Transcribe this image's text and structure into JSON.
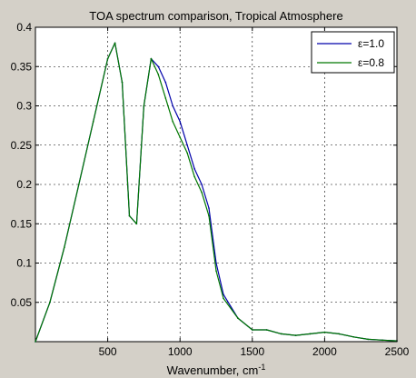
{
  "chart_data": {
    "type": "line",
    "title": "TOA spectrum comparison, Tropical Atmosphere",
    "xlabel": "Wavenumber, cm",
    "xlabel_superscript": "-1",
    "ylabel": "",
    "xlim": [
      0,
      2500
    ],
    "ylim": [
      0,
      0.4
    ],
    "x_ticks": [
      500,
      1000,
      1500,
      2000,
      2500
    ],
    "y_ticks": [
      0.05,
      0.1,
      0.15,
      0.2,
      0.25,
      0.3,
      0.35,
      0.4
    ],
    "y_tick_labels": [
      "0.05",
      "0.1",
      "0.15",
      "0.2",
      "0.25",
      "0.3",
      "0.35",
      "0.4"
    ],
    "grid": true,
    "legend_position": "top-right",
    "series": [
      {
        "name": "ε=1.0",
        "color": "#0000aa",
        "x": [
          0,
          100,
          200,
          300,
          400,
          500,
          550,
          600,
          650,
          700,
          750,
          800,
          850,
          900,
          950,
          1000,
          1050,
          1100,
          1150,
          1200,
          1250,
          1300,
          1400,
          1500,
          1600,
          1700,
          1800,
          1900,
          2000,
          2100,
          2200,
          2300,
          2400,
          2500
        ],
        "y": [
          0.0,
          0.05,
          0.12,
          0.2,
          0.28,
          0.36,
          0.38,
          0.33,
          0.16,
          0.15,
          0.3,
          0.36,
          0.35,
          0.33,
          0.3,
          0.28,
          0.25,
          0.22,
          0.2,
          0.17,
          0.1,
          0.06,
          0.03,
          0.015,
          0.015,
          0.01,
          0.008,
          0.01,
          0.012,
          0.01,
          0.006,
          0.003,
          0.002,
          0.001
        ]
      },
      {
        "name": "ε=0.8",
        "color": "#007700",
        "x": [
          0,
          100,
          200,
          300,
          400,
          500,
          550,
          600,
          650,
          700,
          750,
          800,
          850,
          900,
          950,
          1000,
          1050,
          1100,
          1150,
          1200,
          1250,
          1300,
          1400,
          1500,
          1600,
          1700,
          1800,
          1900,
          2000,
          2100,
          2200,
          2300,
          2400,
          2500
        ],
        "y": [
          0.0,
          0.05,
          0.12,
          0.2,
          0.28,
          0.36,
          0.38,
          0.33,
          0.16,
          0.15,
          0.3,
          0.36,
          0.34,
          0.31,
          0.28,
          0.26,
          0.24,
          0.21,
          0.19,
          0.16,
          0.09,
          0.055,
          0.03,
          0.015,
          0.015,
          0.01,
          0.008,
          0.01,
          0.012,
          0.01,
          0.006,
          0.003,
          0.002,
          0.001
        ]
      }
    ]
  }
}
